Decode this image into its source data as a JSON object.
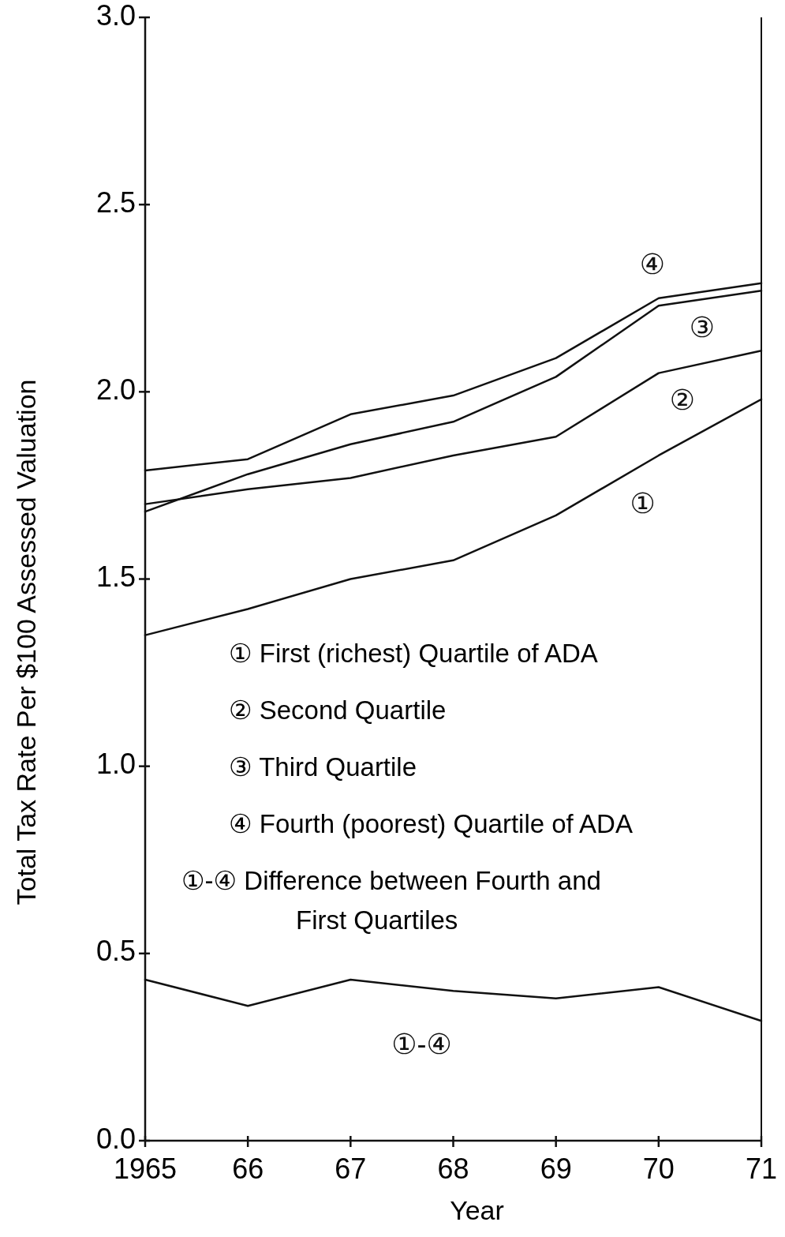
{
  "chart_data": {
    "type": "line",
    "xlabel": "Year",
    "ylabel": "Total Tax Rate Per $100 Assessed Valuation",
    "x": [
      1965,
      1966,
      1967,
      1968,
      1969,
      1970,
      1971
    ],
    "xlim": [
      1965,
      1971
    ],
    "xticks": [
      1965,
      {
        "value": 1966,
        "label": "66"
      },
      {
        "value": 1967,
        "label": "67"
      },
      {
        "value": 1968,
        "label": "68"
      },
      {
        "value": 1969,
        "label": "69"
      },
      {
        "value": 1970,
        "label": "70"
      },
      {
        "value": 1971,
        "label": "71"
      }
    ],
    "ylim": [
      0,
      3
    ],
    "yticks": [
      {
        "value": 0,
        "label": "0.0"
      },
      {
        "value": 0.5,
        "label": "0.5"
      },
      {
        "value": 1,
        "label": "1.0"
      },
      {
        "value": 1.5,
        "label": "1.5"
      },
      {
        "value": 2,
        "label": "2.0"
      },
      {
        "value": 2.5,
        "label": "2.5"
      },
      {
        "value": 3,
        "label": "3.0"
      }
    ],
    "grid": false,
    "marker": "none",
    "line_style": "solid",
    "series": [
      {
        "name": "④",
        "color": "#111111",
        "values": [
          1.79,
          1.82,
          1.94,
          1.99,
          2.09,
          2.25,
          2.29
        ]
      },
      {
        "name": "③",
        "color": "#111111",
        "values": [
          1.68,
          1.78,
          1.86,
          1.92,
          2.04,
          2.23,
          2.27
        ]
      },
      {
        "name": "②",
        "color": "#111111",
        "values": [
          1.7,
          1.74,
          1.77,
          1.83,
          1.88,
          2.05,
          2.11
        ]
      },
      {
        "name": "①",
        "color": "#111111",
        "values": [
          1.35,
          1.42,
          1.5,
          1.55,
          1.67,
          1.83,
          1.98
        ]
      },
      {
        "name": "①-④",
        "color": "#111111",
        "values": [
          0.43,
          0.36,
          0.43,
          0.4,
          0.38,
          0.41,
          0.32
        ]
      }
    ],
    "annotations": [
      "① First (richest) Quartile of ADA",
      "② Second Quartile",
      "③ Third Quartile",
      "④ Fourth (poorest) Quartile of ADA",
      "①-④ Difference between Fourth and First Quartiles"
    ]
  }
}
